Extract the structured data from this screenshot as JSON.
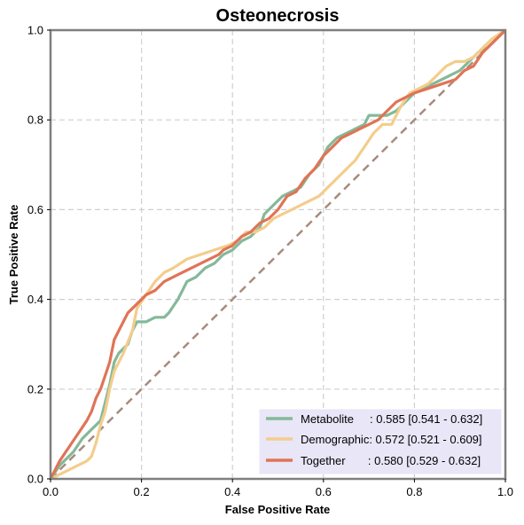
{
  "chart_data": {
    "type": "line",
    "title": "Osteonecrosis",
    "xlabel": "False Positive Rate",
    "ylabel": "True Positive Rate",
    "xlim": [
      0,
      1
    ],
    "ylim": [
      0,
      1
    ],
    "xticks": [
      "0.0",
      "0.2",
      "0.4",
      "0.6",
      "0.8",
      "1.0"
    ],
    "yticks": [
      "0.0",
      "0.2",
      "0.4",
      "0.6",
      "0.8",
      "1.0"
    ],
    "grid": true,
    "legend_position": "lower-right",
    "diagonal": {
      "color": "#a88b7e",
      "style": "dashed"
    },
    "series": [
      {
        "name": "Metabolite",
        "legend_label": "Metabolite     : 0.585 [0.541 - 0.632]",
        "color": "#84b99a",
        "points": [
          [
            0,
            0
          ],
          [
            0.02,
            0.03
          ],
          [
            0.05,
            0.06
          ],
          [
            0.07,
            0.09
          ],
          [
            0.09,
            0.11
          ],
          [
            0.1,
            0.12
          ],
          [
            0.11,
            0.13
          ],
          [
            0.12,
            0.17
          ],
          [
            0.13,
            0.21
          ],
          [
            0.14,
            0.26
          ],
          [
            0.15,
            0.28
          ],
          [
            0.17,
            0.3
          ],
          [
            0.18,
            0.33
          ],
          [
            0.19,
            0.35
          ],
          [
            0.21,
            0.35
          ],
          [
            0.23,
            0.36
          ],
          [
            0.25,
            0.36
          ],
          [
            0.26,
            0.37
          ],
          [
            0.28,
            0.4
          ],
          [
            0.29,
            0.42
          ],
          [
            0.3,
            0.44
          ],
          [
            0.32,
            0.45
          ],
          [
            0.34,
            0.47
          ],
          [
            0.36,
            0.48
          ],
          [
            0.38,
            0.5
          ],
          [
            0.4,
            0.51
          ],
          [
            0.42,
            0.53
          ],
          [
            0.44,
            0.54
          ],
          [
            0.46,
            0.56
          ],
          [
            0.47,
            0.59
          ],
          [
            0.49,
            0.61
          ],
          [
            0.51,
            0.63
          ],
          [
            0.53,
            0.64
          ],
          [
            0.55,
            0.65
          ],
          [
            0.57,
            0.68
          ],
          [
            0.59,
            0.7
          ],
          [
            0.61,
            0.74
          ],
          [
            0.63,
            0.76
          ],
          [
            0.65,
            0.77
          ],
          [
            0.67,
            0.78
          ],
          [
            0.69,
            0.79
          ],
          [
            0.7,
            0.81
          ],
          [
            0.74,
            0.81
          ],
          [
            0.76,
            0.82
          ],
          [
            0.78,
            0.84
          ],
          [
            0.8,
            0.86
          ],
          [
            0.82,
            0.87
          ],
          [
            0.84,
            0.88
          ],
          [
            0.86,
            0.89
          ],
          [
            0.88,
            0.9
          ],
          [
            0.9,
            0.91
          ],
          [
            0.92,
            0.93
          ],
          [
            0.94,
            0.95
          ],
          [
            0.96,
            0.96
          ],
          [
            0.98,
            0.98
          ],
          [
            1,
            1
          ]
        ]
      },
      {
        "name": "Demographic",
        "legend_label": "Demographic: 0.572 [0.521 - 0.609]",
        "color": "#f3cd8c",
        "points": [
          [
            0,
            0
          ],
          [
            0.02,
            0.01
          ],
          [
            0.04,
            0.02
          ],
          [
            0.06,
            0.03
          ],
          [
            0.08,
            0.04
          ],
          [
            0.09,
            0.05
          ],
          [
            0.1,
            0.08
          ],
          [
            0.11,
            0.12
          ],
          [
            0.12,
            0.15
          ],
          [
            0.13,
            0.2
          ],
          [
            0.14,
            0.24
          ],
          [
            0.16,
            0.28
          ],
          [
            0.18,
            0.33
          ],
          [
            0.19,
            0.38
          ],
          [
            0.21,
            0.41
          ],
          [
            0.23,
            0.44
          ],
          [
            0.25,
            0.46
          ],
          [
            0.27,
            0.47
          ],
          [
            0.3,
            0.49
          ],
          [
            0.33,
            0.5
          ],
          [
            0.36,
            0.51
          ],
          [
            0.39,
            0.52
          ],
          [
            0.41,
            0.53
          ],
          [
            0.43,
            0.55
          ],
          [
            0.45,
            0.55
          ],
          [
            0.47,
            0.56
          ],
          [
            0.49,
            0.58
          ],
          [
            0.51,
            0.59
          ],
          [
            0.53,
            0.6
          ],
          [
            0.55,
            0.61
          ],
          [
            0.57,
            0.62
          ],
          [
            0.59,
            0.63
          ],
          [
            0.61,
            0.65
          ],
          [
            0.63,
            0.67
          ],
          [
            0.65,
            0.69
          ],
          [
            0.67,
            0.71
          ],
          [
            0.69,
            0.74
          ],
          [
            0.71,
            0.77
          ],
          [
            0.73,
            0.79
          ],
          [
            0.75,
            0.79
          ],
          [
            0.77,
            0.83
          ],
          [
            0.79,
            0.86
          ],
          [
            0.81,
            0.87
          ],
          [
            0.83,
            0.88
          ],
          [
            0.85,
            0.9
          ],
          [
            0.87,
            0.92
          ],
          [
            0.89,
            0.93
          ],
          [
            0.91,
            0.93
          ],
          [
            0.93,
            0.94
          ],
          [
            0.95,
            0.96
          ],
          [
            0.97,
            0.98
          ],
          [
            1,
            1
          ]
        ]
      },
      {
        "name": "Together",
        "legend_label": "Together       : 0.580 [0.529 - 0.632]",
        "color": "#e07456",
        "points": [
          [
            0,
            0
          ],
          [
            0.02,
            0.04
          ],
          [
            0.04,
            0.07
          ],
          [
            0.06,
            0.1
          ],
          [
            0.08,
            0.13
          ],
          [
            0.09,
            0.15
          ],
          [
            0.1,
            0.18
          ],
          [
            0.11,
            0.2
          ],
          [
            0.12,
            0.23
          ],
          [
            0.13,
            0.26
          ],
          [
            0.14,
            0.31
          ],
          [
            0.15,
            0.33
          ],
          [
            0.17,
            0.37
          ],
          [
            0.19,
            0.39
          ],
          [
            0.21,
            0.41
          ],
          [
            0.23,
            0.42
          ],
          [
            0.25,
            0.44
          ],
          [
            0.27,
            0.45
          ],
          [
            0.29,
            0.46
          ],
          [
            0.31,
            0.47
          ],
          [
            0.33,
            0.48
          ],
          [
            0.35,
            0.49
          ],
          [
            0.37,
            0.5
          ],
          [
            0.38,
            0.51
          ],
          [
            0.4,
            0.52
          ],
          [
            0.42,
            0.54
          ],
          [
            0.44,
            0.55
          ],
          [
            0.46,
            0.57
          ],
          [
            0.48,
            0.58
          ],
          [
            0.5,
            0.6
          ],
          [
            0.52,
            0.63
          ],
          [
            0.54,
            0.64
          ],
          [
            0.56,
            0.67
          ],
          [
            0.58,
            0.69
          ],
          [
            0.6,
            0.72
          ],
          [
            0.62,
            0.74
          ],
          [
            0.64,
            0.76
          ],
          [
            0.66,
            0.77
          ],
          [
            0.68,
            0.78
          ],
          [
            0.7,
            0.79
          ],
          [
            0.72,
            0.8
          ],
          [
            0.74,
            0.82
          ],
          [
            0.76,
            0.84
          ],
          [
            0.78,
            0.85
          ],
          [
            0.8,
            0.86
          ],
          [
            0.83,
            0.87
          ],
          [
            0.86,
            0.88
          ],
          [
            0.89,
            0.89
          ],
          [
            0.91,
            0.91
          ],
          [
            0.93,
            0.92
          ],
          [
            0.95,
            0.95
          ],
          [
            0.97,
            0.97
          ],
          [
            1,
            1
          ]
        ]
      }
    ],
    "legend_background": "#e8e6f7"
  }
}
